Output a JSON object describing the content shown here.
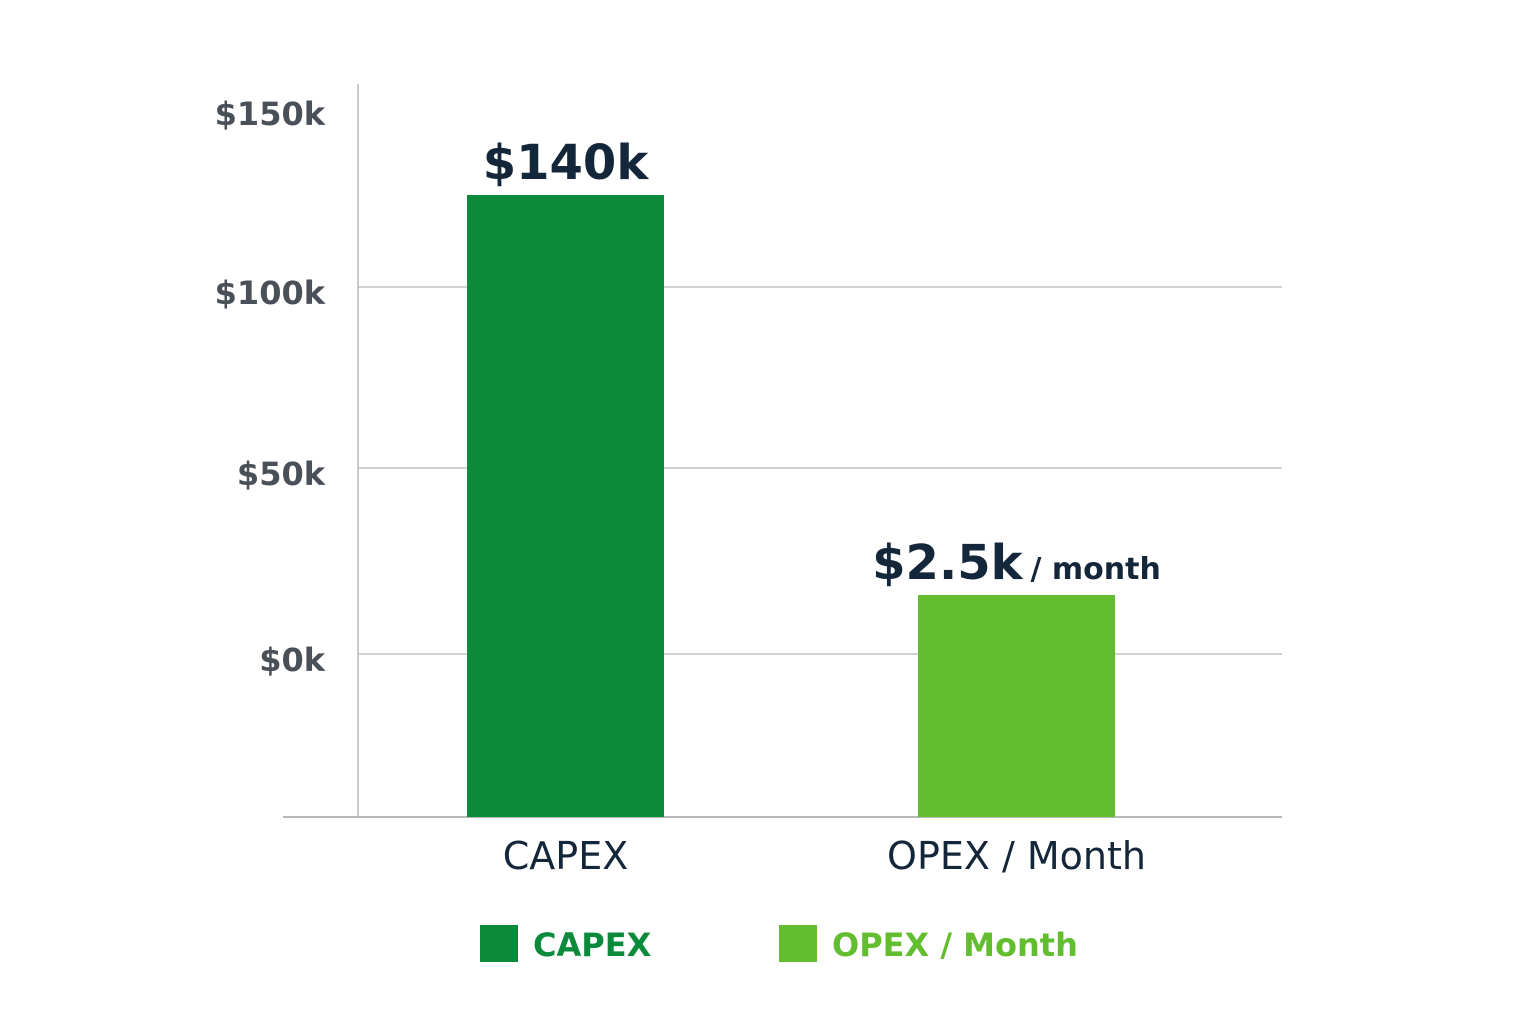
{
  "chart_data": {
    "type": "bar",
    "categories": [
      "CAPEX",
      "OPEX / Month"
    ],
    "values": [
      140,
      2.5
    ],
    "units": "$k",
    "data_labels": [
      {
        "main": "$140k",
        "suffix": ""
      },
      {
        "main": "$2.5k",
        "suffix": "/ month"
      }
    ],
    "yticks": [
      "$0k",
      "$50k",
      "$100k",
      "$150k"
    ],
    "ytick_values": [
      0,
      50,
      100,
      150
    ],
    "ylim": [
      0,
      150
    ],
    "grid": true,
    "legend": {
      "placement": "bottom",
      "entries": [
        "CAPEX",
        "OPEX / Month"
      ]
    },
    "colors": [
      "#0a8a3a",
      "#62be2e"
    ],
    "xlabel": "",
    "ylabel": "",
    "title": ""
  }
}
